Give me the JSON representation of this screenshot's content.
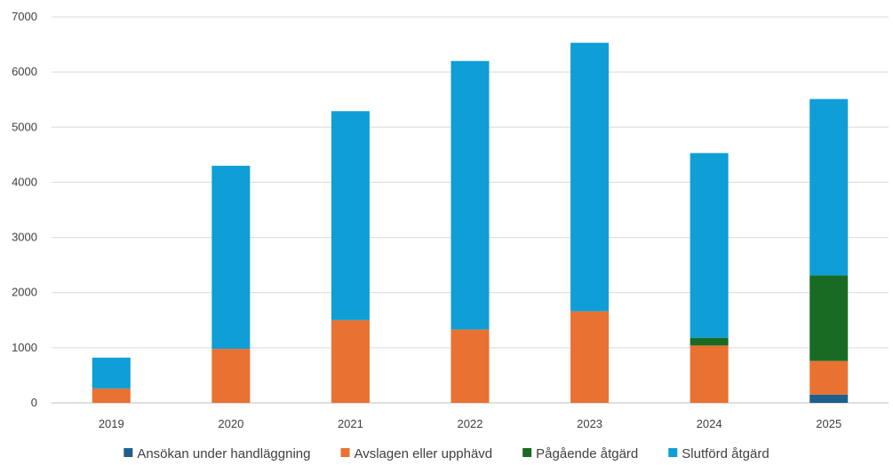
{
  "chart_data": {
    "type": "bar",
    "stacked": true,
    "categories": [
      "2019",
      "2020",
      "2021",
      "2022",
      "2023",
      "2024",
      "2025"
    ],
    "series": [
      {
        "name": "Ansökan under handläggning",
        "color": "#1f5f8b",
        "values": [
          0,
          0,
          0,
          0,
          0,
          0,
          150
        ]
      },
      {
        "name": "Avslagen eller upphävd",
        "color": "#e97132",
        "values": [
          260,
          980,
          1500,
          1330,
          1660,
          1040,
          610
        ]
      },
      {
        "name": "Pågående åtgärd",
        "color": "#196b24",
        "values": [
          0,
          0,
          0,
          0,
          0,
          140,
          1550
        ]
      },
      {
        "name": "Slutförd åtgärd",
        "color": "#0f9ed5",
        "values": [
          560,
          3320,
          3790,
          4870,
          4870,
          3350,
          3200
        ]
      }
    ],
    "ylim": [
      0,
      7000
    ],
    "yticks": [
      "0",
      "1000",
      "2000",
      "3000",
      "4000",
      "5000",
      "6000",
      "7000"
    ],
    "grid": true,
    "legend_position": "bottom"
  }
}
